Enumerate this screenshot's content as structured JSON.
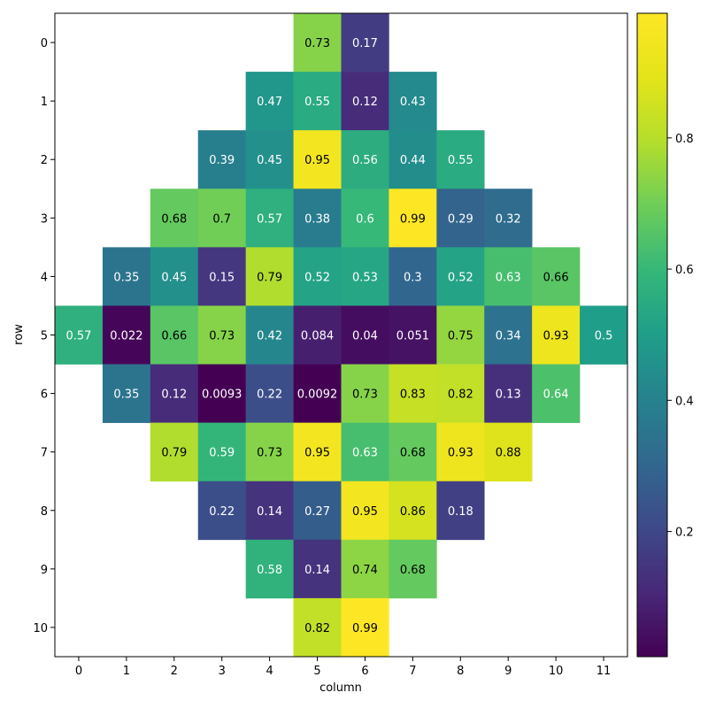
{
  "chart_data": {
    "type": "heatmap",
    "title": "",
    "xlabel": "column",
    "ylabel": "row",
    "colormap": "viridis",
    "columns": [
      0,
      1,
      2,
      3,
      4,
      5,
      6,
      7,
      8,
      9,
      10,
      11
    ],
    "rows": [
      0,
      1,
      2,
      3,
      4,
      5,
      6,
      7,
      8,
      9,
      10
    ],
    "values": [
      [
        null,
        null,
        null,
        null,
        null,
        0.73,
        0.17,
        null,
        null,
        null,
        null,
        null
      ],
      [
        null,
        null,
        null,
        null,
        0.47,
        0.55,
        0.12,
        0.43,
        null,
        null,
        null,
        null
      ],
      [
        null,
        null,
        null,
        0.39,
        0.45,
        0.95,
        0.56,
        0.44,
        0.55,
        null,
        null,
        null
      ],
      [
        null,
        null,
        0.68,
        0.7,
        0.57,
        0.38,
        0.6,
        0.99,
        0.29,
        0.32,
        null,
        null
      ],
      [
        null,
        0.35,
        0.45,
        0.15,
        0.79,
        0.52,
        0.53,
        0.3,
        0.52,
        0.63,
        0.66,
        null
      ],
      [
        0.57,
        0.022,
        0.66,
        0.73,
        0.42,
        0.084,
        0.04,
        0.051,
        0.75,
        0.34,
        0.93,
        0.5
      ],
      [
        null,
        0.35,
        0.12,
        0.0093,
        0.22,
        0.0092,
        0.73,
        0.83,
        0.82,
        0.13,
        0.64,
        null
      ],
      [
        null,
        null,
        0.79,
        0.59,
        0.73,
        0.95,
        0.63,
        0.68,
        0.93,
        0.88,
        null,
        null
      ],
      [
        null,
        null,
        null,
        0.22,
        0.14,
        0.27,
        0.95,
        0.86,
        0.18,
        null,
        null,
        null
      ],
      [
        null,
        null,
        null,
        null,
        0.58,
        0.14,
        0.74,
        0.68,
        null,
        null,
        null,
        null
      ],
      [
        null,
        null,
        null,
        null,
        null,
        0.82,
        0.99,
        null,
        null,
        null,
        null,
        null
      ]
    ],
    "colorbar": {
      "min": 0.0092,
      "max": 0.99,
      "ticks": [
        0.2,
        0.4,
        0.6,
        0.8
      ],
      "tick_labels": [
        "0.2",
        "0.4",
        "0.6",
        "0.8"
      ]
    },
    "grid": false,
    "legend": "none"
  }
}
